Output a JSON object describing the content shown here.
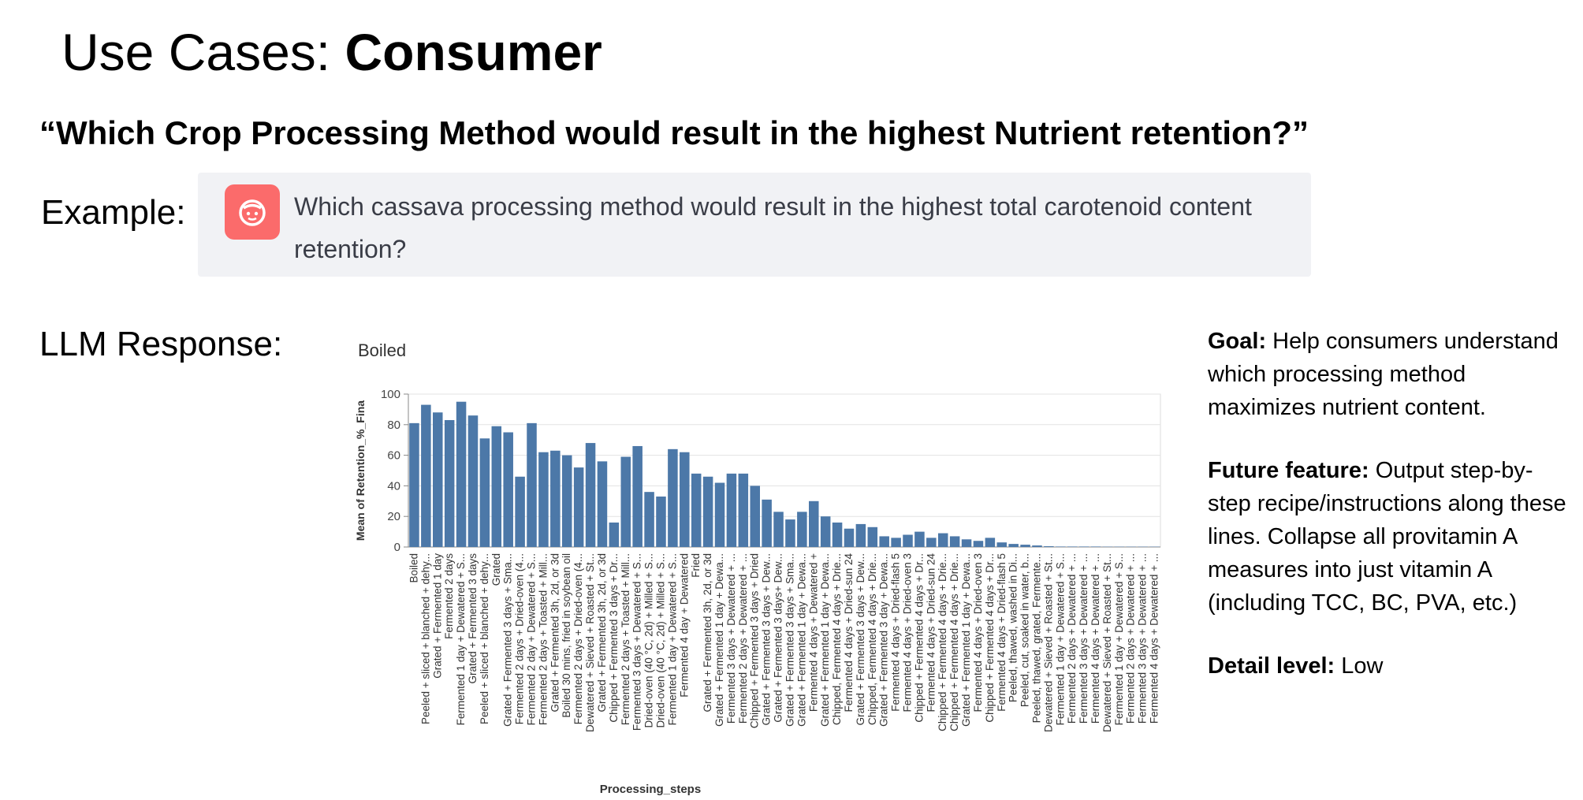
{
  "slide": {
    "title_prefix": "Use Cases: ",
    "title_bold": "Consumer",
    "question": "“Which Crop Processing Method would result in the highest Nutrient retention?”",
    "example_label": "Example:",
    "example_text": "Which cassava processing method would result in the highest total carotenoid content retention?",
    "avatar_icon": "user-face-icon",
    "avatar_color": "#fb6b6b",
    "llm_label": "LLM Response:",
    "chart_subtitle": "Boiled"
  },
  "notes": {
    "goal_label": "Goal:",
    "goal_text": " Help consumers understand which processing method maximizes nutrient content.",
    "future_label": "Future feature:",
    "future_text": " Output step-by-step recipe/instructions along these lines. Collapse all provitamin A measures into just vitamin A (including TCC, BC, PVA, etc.)",
    "detail_label": "Detail level:",
    "detail_text": " Low"
  },
  "chart_data": {
    "type": "bar",
    "xlabel": "Processing_steps",
    "ylabel": "Mean of Retention_%_Fina",
    "ylim": [
      0,
      100
    ],
    "yticks": [
      0,
      20,
      40,
      60,
      80,
      100
    ],
    "grid": true,
    "bar_color": "#4c78a8",
    "categories": [
      "Boiled",
      "Peeled + sliced + blanched + dehy...",
      "Grated + Fermented 1 day",
      "Fermented 2 days",
      "Fermented 1 day + Dewatered + S...",
      "Grated + Fermented 3 days",
      "Peeled + sliced + blanched + dehy...",
      "Grated",
      "Grated + Fermented 3 days + Sma...",
      "Fermented 2 days + Dried-oven (4...",
      "Fermented 2 day + Dewatered + S...",
      "Fermented 2 days + Toasted + Mill...",
      "Grated + Fermented 3h, 2d, or 3d",
      "Boiled 30 mins, fried in soybean oil",
      "Fermented 2 days + Dried-oven (4...",
      "Dewatered + Sieved + Roasted + St...",
      "Grated + Fermented 3h, 2d, or 3d",
      "Chipped + Fermented 3 days + Dr...",
      "Fermented 2 days + Toasted + Mill...",
      "Fermented 3 days + Dewatered + S...",
      "Dried-oven (40 °C, 2d) + Milled + S...",
      "Dried-oven (40 °C, 2d) + Milled + S...",
      "Fermented 1 day + Dewatered + S...",
      "Fermented 4 day + Dewatered",
      "Fried",
      "Grated + Fermented 3h, 2d, or 3d",
      "Grated + Fermented 1 day + Dewa...",
      "Fermented 3 days + Dewatered + ...",
      "Fermented 2 days + Dewatered + ...",
      "Chipped + Fermented 3 days + Dried",
      "Grated + Fermented 3 days + Dew...",
      "Grated + Fermented 3 days+ Dew...",
      "Grated + Fermented 3 days + Sma...",
      "Grated + Fermented 1 day + Dewa...",
      "Fermented 4 days + Dewatered +",
      "Grated + Fermented 1 day + Dewa...",
      "Chipped, Fermented 4 days + Drie...",
      "Fermented 4 days + Dried-sun 24",
      "Grated + Fermented 3 days + Dew...",
      "Chipped, Fermented 4 days + Drie...",
      "Grated + Fermented 3 day + Dewa...",
      "Fermented 4 days + Dried-flash 5",
      "Fermented 4 days + Dried-oven 3",
      "Chipped + Fermented 4 days + Dr...",
      "Fermented 4 days + Dried-sun 24",
      "Chipped + Fermented 4 days + Drie...",
      "Chipped + Fermented 4 days + Drie...",
      "Grated + Fermented 1 day + Dewa...",
      "Fermented 4 days + Dried-oven 3",
      "Chipped + Fermented 4 days + Dr...",
      "Fermented 4 days + Dried-flash 5",
      "Peeled, thawed, washed in Di...",
      "Peeled, cut, soaked in water, b...",
      "Peeled, thawed, grated, Fermente...",
      "Dewatered + Sieved + Roasted + St...",
      "Fermented 1 day + Dewatered + S...",
      "Fermented 2 days + Dewatered + ...",
      "Fermented 3 days + Dewatered + ...",
      "Fermented 4 days + Dewatered + ...",
      "Dewatered + Sieved + Roasted + St...",
      "Fermented 1 day + Dewatered + S...",
      "Fermented 2 days + Dewatered + ...",
      "Fermented 3 days + Dewatered + ...",
      "Fermented 4 days + Dewatered + ..."
    ],
    "values": [
      81,
      93,
      88,
      83,
      95,
      86,
      71,
      79,
      75,
      46,
      81,
      62,
      63,
      60,
      52,
      68,
      56,
      16,
      59,
      66,
      36,
      33,
      64,
      62,
      48,
      46,
      42,
      48,
      48,
      40,
      31,
      23,
      18,
      23,
      30,
      20,
      16,
      12,
      15,
      13,
      7,
      6,
      8,
      10,
      6,
      9,
      7,
      5,
      4,
      6,
      3,
      2,
      1.5,
      1,
      0.5,
      0.3,
      0.3,
      0.3,
      0.3,
      0.2,
      0.2,
      0.2,
      0.2,
      0.2
    ]
  }
}
